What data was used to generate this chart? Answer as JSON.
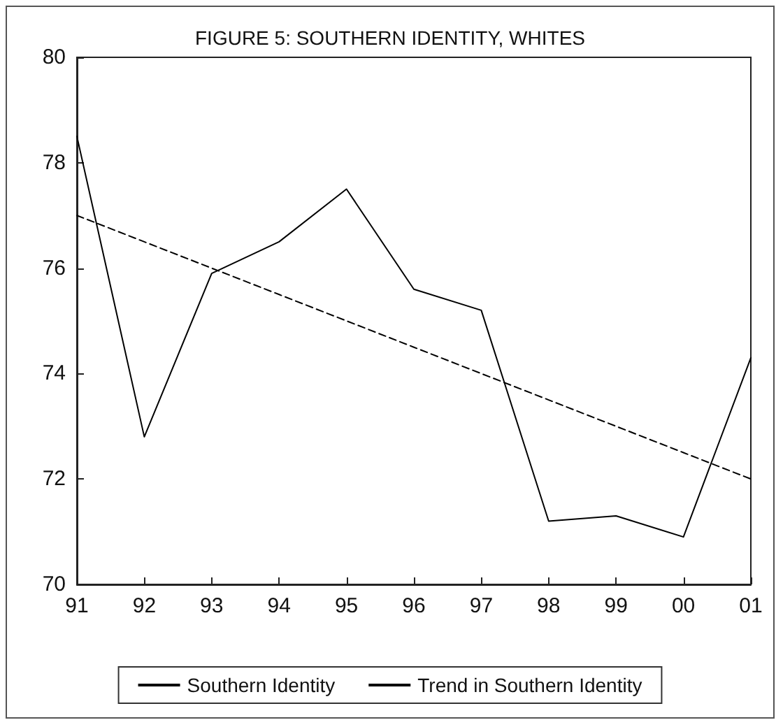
{
  "chart_data": {
    "type": "line",
    "title": "FIGURE 5: SOUTHERN IDENTITY, WHITES",
    "categories": [
      "91",
      "92",
      "93",
      "94",
      "95",
      "96",
      "97",
      "98",
      "99",
      "00",
      "01"
    ],
    "series": [
      {
        "name": "Southern Identity",
        "color": "#000000",
        "line_style": "solid",
        "values": [
          78.5,
          72.8,
          75.9,
          76.5,
          77.5,
          75.6,
          75.2,
          71.2,
          71.3,
          70.9,
          74.3
        ]
      },
      {
        "name": "Trend in Southern Identity",
        "color": "#000000",
        "line_style": "dashed",
        "values": [
          77.0,
          76.5,
          76.0,
          75.5,
          75.0,
          74.5,
          74.0,
          73.5,
          73.0,
          72.5,
          72.0
        ]
      }
    ],
    "ylim": [
      70,
      80
    ],
    "yticks": [
      70,
      72,
      74,
      76,
      78,
      80
    ],
    "grid": false,
    "legend": "bottom",
    "marker": "none"
  }
}
